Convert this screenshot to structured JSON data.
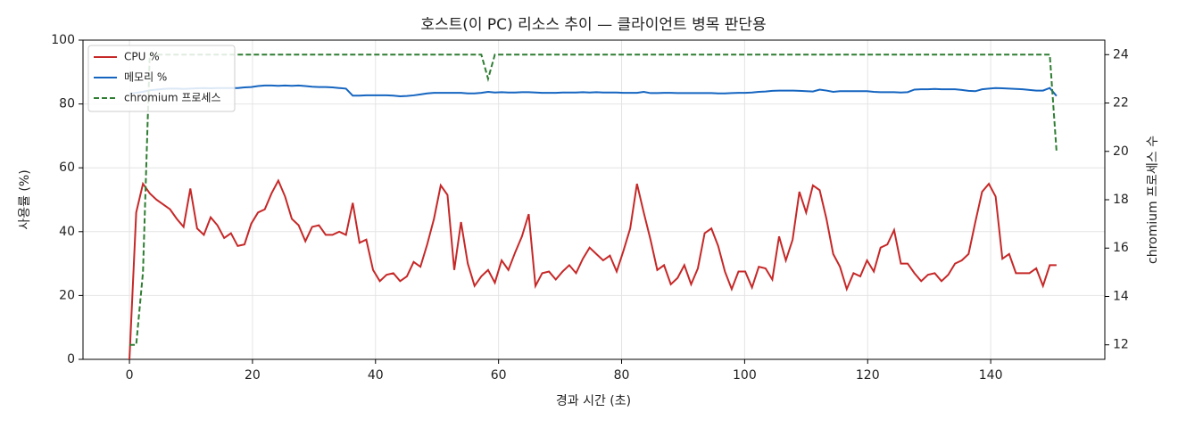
{
  "chart_data": {
    "type": "line",
    "title": "호스트(이 PC) 리소스 추이 — 클라이언트 병목 판단용",
    "x_label": "경과 시간 (초)",
    "y_label": "사용률 (%)",
    "y2_label": "chromium 프로세스 수",
    "x": [
      0,
      1.1,
      2.2,
      3.3,
      4.4,
      5.5,
      6.6,
      7.7,
      8.8,
      9.9,
      11,
      12.1,
      13.2,
      14.3,
      15.4,
      16.5,
      17.6,
      18.7,
      19.8,
      20.9,
      22,
      23.1,
      24.2,
      25.3,
      26.4,
      27.5,
      28.6,
      29.7,
      30.8,
      31.9,
      33,
      34.1,
      35.2,
      36.3,
      37.4,
      38.5,
      39.6,
      40.7,
      41.8,
      42.9,
      44,
      45.1,
      46.2,
      47.3,
      48.4,
      49.5,
      50.6,
      51.7,
      52.8,
      53.9,
      55,
      56.1,
      57.2,
      58.3,
      59.4,
      60.5,
      61.6,
      62.7,
      63.8,
      64.9,
      66,
      67.1,
      68.2,
      69.3,
      70.4,
      71.5,
      72.6,
      73.7,
      74.8,
      75.9,
      77,
      78.1,
      79.2,
      80.3,
      81.4,
      82.5,
      83.6,
      84.7,
      85.8,
      86.9,
      88,
      89.1,
      90.2,
      91.3,
      92.4,
      93.5,
      94.6,
      95.7,
      96.8,
      97.9,
      99,
      100.1,
      101.2,
      102.3,
      103.4,
      104.5,
      105.6,
      106.7,
      107.8,
      108.9,
      110,
      111.1,
      112.2,
      113.3,
      114.4,
      115.5,
      116.6,
      117.7,
      118.8,
      119.9,
      121,
      122.1,
      123.2,
      124.3,
      125.4,
      126.5,
      127.6,
      128.7,
      129.8,
      130.9,
      132,
      133.1,
      134.2,
      135.3,
      136.4,
      137.5,
      138.6,
      139.7,
      140.8,
      141.9,
      143,
      144.1,
      145.2,
      146.3,
      147.4,
      148.5,
      149.6,
      150.7
    ],
    "series": [
      {
        "name": "CPU %",
        "color": "#c62828",
        "values": [
          0,
          46,
          55,
          52,
          50,
          48.5,
          47,
          44,
          41.5,
          53.5,
          41,
          39,
          44.5,
          42,
          38,
          39.5,
          35.5,
          36,
          42.5,
          46,
          47,
          52,
          56,
          51,
          44,
          42,
          37,
          41.5,
          42,
          39,
          39,
          40,
          39,
          49,
          36.5,
          37.5,
          28,
          24.5,
          26.5,
          27,
          24.5,
          26,
          30.5,
          29,
          36,
          44,
          54.5,
          51.5,
          28,
          43,
          30,
          23,
          26,
          28,
          24,
          31,
          28,
          33.5,
          38.5,
          45.5,
          23,
          27,
          27.5,
          25,
          27.5,
          29.5,
          27,
          31.5,
          35,
          33,
          31,
          32.5,
          27.5,
          34,
          41,
          55,
          46,
          37.5,
          28,
          29.5,
          23.5,
          25.5,
          29.5,
          23.5,
          28.5,
          39.5,
          41,
          35.5,
          27.5,
          22,
          27.5,
          27.5,
          22.5,
          29,
          28.5,
          25,
          38.5,
          31,
          37.5,
          52.5,
          46,
          54.5,
          53,
          44,
          33,
          29,
          22,
          27,
          26,
          31,
          27.5,
          35,
          36,
          40.5,
          30,
          30,
          27,
          24.5,
          26.5,
          27,
          24.5,
          26.5,
          30,
          31,
          33,
          43,
          52.5,
          55,
          51,
          31.5,
          33,
          27,
          27,
          27,
          28.5,
          23,
          29.5,
          29.5
        ]
      },
      {
        "name": "메모리 %",
        "color": "#1565c0",
        "values": [
          83.2,
          83.5,
          83.8,
          84.3,
          84.5,
          84.7,
          84.8,
          84.8,
          84.7,
          84.8,
          84.9,
          85,
          84.9,
          85,
          85,
          85,
          85,
          85.2,
          85.3,
          85.6,
          85.8,
          85.8,
          85.7,
          85.8,
          85.7,
          85.8,
          85.6,
          85.4,
          85.3,
          85.3,
          85.2,
          85,
          84.8,
          82.6,
          82.6,
          82.7,
          82.7,
          82.7,
          82.7,
          82.6,
          82.4,
          82.5,
          82.7,
          83,
          83.3,
          83.5,
          83.5,
          83.5,
          83.5,
          83.5,
          83.3,
          83.3,
          83.5,
          83.8,
          83.6,
          83.7,
          83.6,
          83.6,
          83.7,
          83.7,
          83.6,
          83.5,
          83.5,
          83.5,
          83.6,
          83.6,
          83.6,
          83.7,
          83.6,
          83.7,
          83.6,
          83.6,
          83.6,
          83.5,
          83.5,
          83.5,
          83.8,
          83.4,
          83.4,
          83.5,
          83.5,
          83.4,
          83.4,
          83.4,
          83.4,
          83.4,
          83.4,
          83.3,
          83.3,
          83.4,
          83.5,
          83.5,
          83.6,
          83.8,
          83.9,
          84.1,
          84.2,
          84.2,
          84.2,
          84.1,
          84,
          83.9,
          84.5,
          84.2,
          83.8,
          84,
          84,
          84,
          84,
          84,
          83.8,
          83.7,
          83.7,
          83.7,
          83.6,
          83.7,
          84.5,
          84.6,
          84.6,
          84.7,
          84.6,
          84.6,
          84.6,
          84.4,
          84.1,
          84,
          84.6,
          84.8,
          85,
          84.9,
          84.8,
          84.7,
          84.6,
          84.4,
          84.2,
          84.2,
          85,
          82.5
        ]
      },
      {
        "name": "chromium 프로세스",
        "color": "#2e7d32",
        "dashed": true,
        "axis": "y2",
        "values": [
          12,
          12,
          15,
          24,
          24,
          24,
          24,
          24,
          24,
          24,
          24,
          24,
          24,
          24,
          24,
          24,
          24,
          24,
          24,
          24,
          24,
          24,
          24,
          24,
          24,
          24,
          24,
          24,
          24,
          24,
          24,
          24,
          24,
          24,
          24,
          24,
          24,
          24,
          24,
          24,
          24,
          24,
          24,
          24,
          24,
          24,
          24,
          24,
          24,
          24,
          24,
          24,
          24,
          23,
          24,
          24,
          24,
          24,
          24,
          24,
          24,
          24,
          24,
          24,
          24,
          24,
          24,
          24,
          24,
          24,
          24,
          24,
          24,
          24,
          24,
          24,
          24,
          24,
          24,
          24,
          24,
          24,
          24,
          24,
          24,
          24,
          24,
          24,
          24,
          24,
          24,
          24,
          24,
          24,
          24,
          24,
          24,
          24,
          24,
          24,
          24,
          24,
          24,
          24,
          24,
          24,
          24,
          24,
          24,
          24,
          24,
          24,
          24,
          24,
          24,
          24,
          24,
          24,
          24,
          24,
          24,
          24,
          24,
          24,
          24,
          24,
          24,
          24,
          24,
          24,
          24,
          24,
          24,
          24,
          24,
          24,
          24,
          20
        ]
      }
    ],
    "xlim": [
      -7.55,
      158.55
    ],
    "xticks": [
      0,
      20,
      40,
      60,
      80,
      100,
      120,
      140
    ],
    "ylim": [
      0,
      100
    ],
    "yticks": [
      0,
      20,
      40,
      60,
      80,
      100
    ],
    "y2lim": [
      11.4,
      24.6
    ],
    "y2ticks": [
      12,
      14,
      16,
      18,
      20,
      22,
      24
    ],
    "grid": true,
    "legend": "upper-left"
  }
}
